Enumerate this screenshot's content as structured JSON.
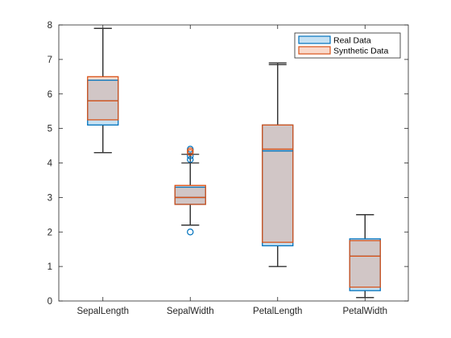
{
  "chart_data": {
    "type": "boxplot",
    "categories": [
      "SepalLength",
      "SepalWidth",
      "PetalLength",
      "PetalWidth"
    ],
    "ylim": [
      0,
      8
    ],
    "yticks": [
      0,
      1,
      2,
      3,
      4,
      5,
      6,
      7,
      8
    ],
    "grid": false,
    "legend_position": "top-right",
    "colors": {
      "real": "#0072BD",
      "real_fill": "#C5E1F3",
      "synthetic": "#D95319",
      "synthetic_fill": "#F9D9CB",
      "overlap_fill": "#D1C6C6",
      "whisker": "#333333"
    },
    "series": [
      {
        "name": "Real Data",
        "boxes": [
          {
            "lower_whisker": 4.3,
            "q1": 5.1,
            "median": 5.8,
            "q3": 6.4,
            "upper_whisker": 7.9,
            "outliers": []
          },
          {
            "lower_whisker": 2.2,
            "q1": 2.8,
            "median": 3.0,
            "q3": 3.3,
            "upper_whisker": 4.0,
            "outliers": [
              2.0,
              4.1,
              4.2,
              4.4
            ]
          },
          {
            "lower_whisker": 1.0,
            "q1": 1.6,
            "median": 4.35,
            "q3": 5.1,
            "upper_whisker": 6.9,
            "outliers": []
          },
          {
            "lower_whisker": 0.1,
            "q1": 0.3,
            "median": 1.3,
            "q3": 1.8,
            "upper_whisker": 2.5,
            "outliers": []
          }
        ]
      },
      {
        "name": "Synthetic Data",
        "boxes": [
          {
            "lower_whisker": 4.3,
            "q1": 5.25,
            "median": 5.8,
            "q3": 6.5,
            "upper_whisker": 7.9,
            "outliers": []
          },
          {
            "lower_whisker": 2.2,
            "q1": 2.8,
            "median": 3.0,
            "q3": 3.35,
            "upper_whisker": 4.25,
            "outliers": [
              4.3,
              4.35
            ]
          },
          {
            "lower_whisker": 1.0,
            "q1": 1.7,
            "median": 4.4,
            "q3": 5.1,
            "upper_whisker": 6.85,
            "outliers": []
          },
          {
            "lower_whisker": 0.1,
            "q1": 0.4,
            "median": 1.3,
            "q3": 1.75,
            "upper_whisker": 2.5,
            "outliers": []
          }
        ]
      }
    ]
  }
}
